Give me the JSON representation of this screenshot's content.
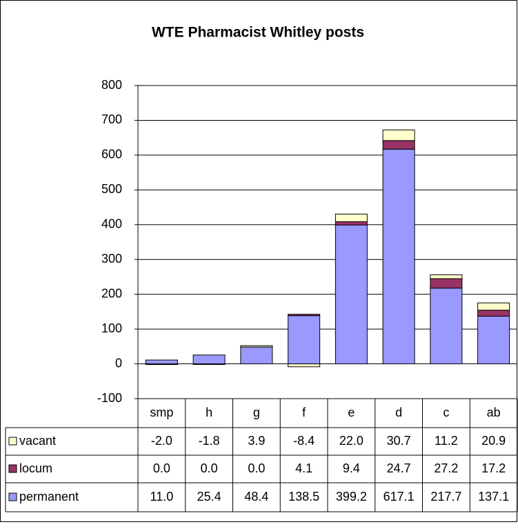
{
  "chart_data": {
    "type": "bar",
    "stacked": true,
    "title": "WTE Pharmacist Whitley posts",
    "categories": [
      "smp",
      "h",
      "g",
      "f",
      "e",
      "d",
      "c",
      "ab"
    ],
    "series": [
      {
        "name": "vacant",
        "color": "#ffffcc",
        "values": [
          -2.0,
          -1.8,
          3.9,
          -8.4,
          22.0,
          30.7,
          11.2,
          20.9
        ],
        "value_labels": [
          "-2.0",
          "-1.8",
          "3.9",
          "-8.4",
          "22.0",
          "30.7",
          "11.2",
          "20.9"
        ]
      },
      {
        "name": "locum",
        "color": "#993366",
        "values": [
          0.0,
          0.0,
          0.0,
          4.1,
          9.4,
          24.7,
          27.2,
          17.2
        ],
        "value_labels": [
          "0.0",
          "0.0",
          "0.0",
          "4.1",
          "9.4",
          "24.7",
          "27.2",
          "17.2"
        ]
      },
      {
        "name": "permanent",
        "color": "#9999ff",
        "values": [
          11.0,
          25.4,
          48.4,
          138.5,
          399.2,
          617.1,
          217.7,
          137.1
        ],
        "value_labels": [
          "11.0",
          "25.4",
          "48.4",
          "138.5",
          "399.2",
          "617.1",
          "217.7",
          "137.1"
        ]
      }
    ],
    "ylim": [
      -100,
      800
    ],
    "yticks": [
      -100,
      0,
      100,
      200,
      300,
      400,
      500,
      600,
      700,
      800
    ],
    "grid": true
  }
}
